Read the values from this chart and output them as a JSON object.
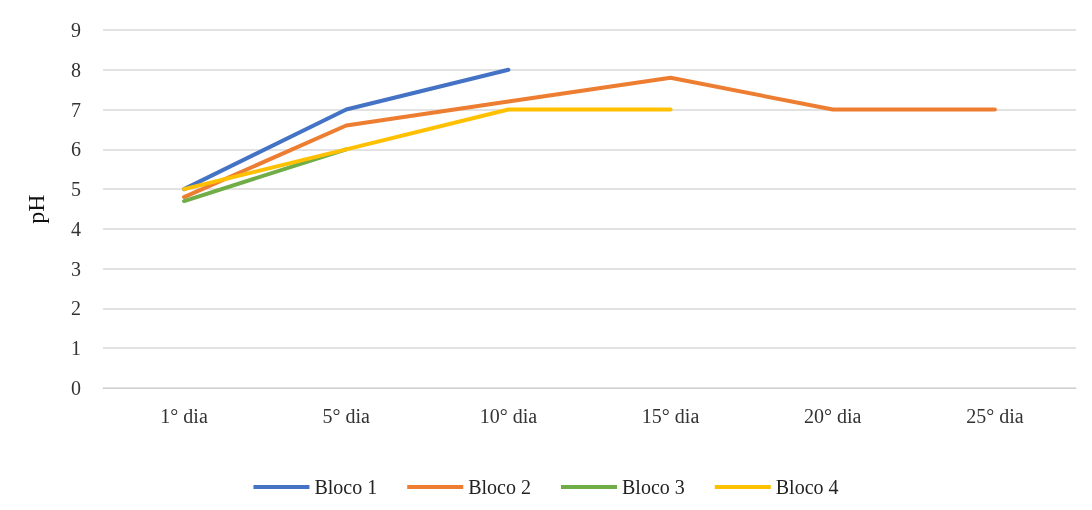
{
  "chart_data": {
    "type": "line",
    "ylabel": "pH",
    "categories": [
      "1° dia",
      "5° dia",
      "10° dia",
      "15° dia",
      "20° dia",
      "25° dia"
    ],
    "series": [
      {
        "name": "Bloco 1",
        "color": "#4472c4",
        "values": [
          5,
          7,
          8,
          null,
          null,
          null
        ]
      },
      {
        "name": "Bloco 2",
        "color": "#ed7d31",
        "values": [
          4.8,
          6.6,
          7.2,
          7.8,
          7,
          7
        ]
      },
      {
        "name": "Bloco 3",
        "color": "#70ad47",
        "values": [
          4.7,
          6,
          null,
          null,
          null,
          null
        ]
      },
      {
        "name": "Bloco 4",
        "color": "#ffc000",
        "values": [
          5,
          6,
          7,
          7,
          null,
          null
        ]
      }
    ],
    "ylim": [
      0,
      9
    ],
    "yticks": [
      0,
      1,
      2,
      3,
      4,
      5,
      6,
      7,
      8,
      9
    ],
    "grid": "y",
    "legend": "bottom",
    "marker": "none",
    "line_style": "solid"
  }
}
